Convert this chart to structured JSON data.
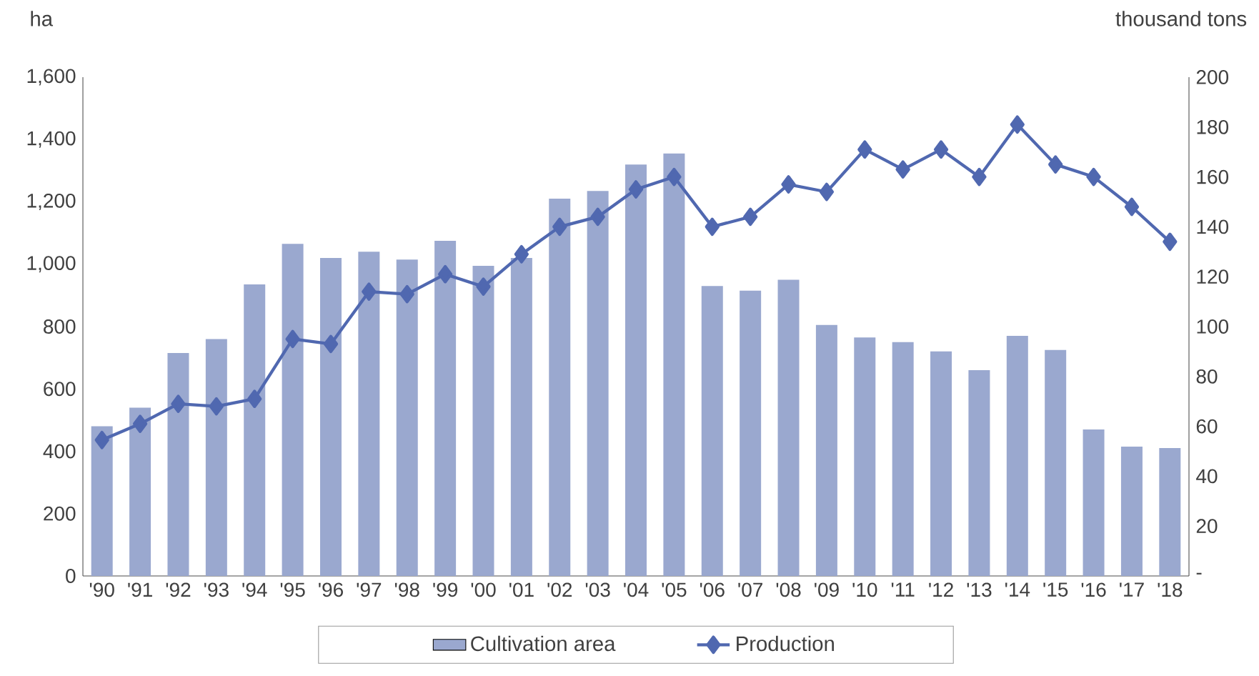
{
  "chart_data": {
    "type": "bar",
    "ylabel": "ha",
    "y2label": "thousand tons",
    "categories": [
      "'90",
      "'91",
      "'92",
      "'93",
      "'94",
      "'95",
      "'96",
      "'97",
      "'98",
      "'99",
      "'00",
      "'01",
      "'02",
      "'03",
      "'04",
      "'05",
      "'06",
      "'07",
      "'08",
      "'09",
      "'10",
      "'11",
      "'12",
      "'13",
      "'14",
      "'15",
      "'16",
      "'17",
      "'18"
    ],
    "series": [
      {
        "name": "Cultivation area",
        "color": "#9aa8cf",
        "values": [
          480,
          540,
          715,
          760,
          935,
          1065,
          1020,
          1040,
          1015,
          1075,
          995,
          1020,
          1210,
          1235,
          1320,
          1355,
          930,
          915,
          950,
          805,
          765,
          750,
          720,
          660,
          770,
          725,
          470,
          415,
          410
        ]
      },
      {
        "name": "Production",
        "type": "line",
        "axis": "y2",
        "color": "#5068b0",
        "values": [
          54.5,
          61,
          69,
          68,
          71,
          95,
          93,
          114,
          113,
          121,
          116,
          129,
          140,
          144,
          155,
          160,
          140,
          144,
          157,
          154,
          171,
          163,
          171,
          160,
          181,
          165,
          160,
          148,
          134
        ]
      }
    ],
    "ylim": [
      0,
      1600
    ],
    "yticks": [
      0,
      200,
      400,
      600,
      800,
      {
        "value": 1000,
        "label": "1,000"
      },
      {
        "value": 1200,
        "label": "1,200"
      },
      {
        "value": 1400,
        "label": "1,400"
      },
      {
        "value": 1600,
        "label": "1,600"
      }
    ],
    "y2lim": [
      0,
      200
    ],
    "y2ticks": [
      {
        "value": 0,
        "label": "-"
      },
      20,
      40,
      60,
      80,
      100,
      120,
      140,
      160,
      180,
      200
    ],
    "legend": "bottom",
    "marker": "diamond"
  }
}
